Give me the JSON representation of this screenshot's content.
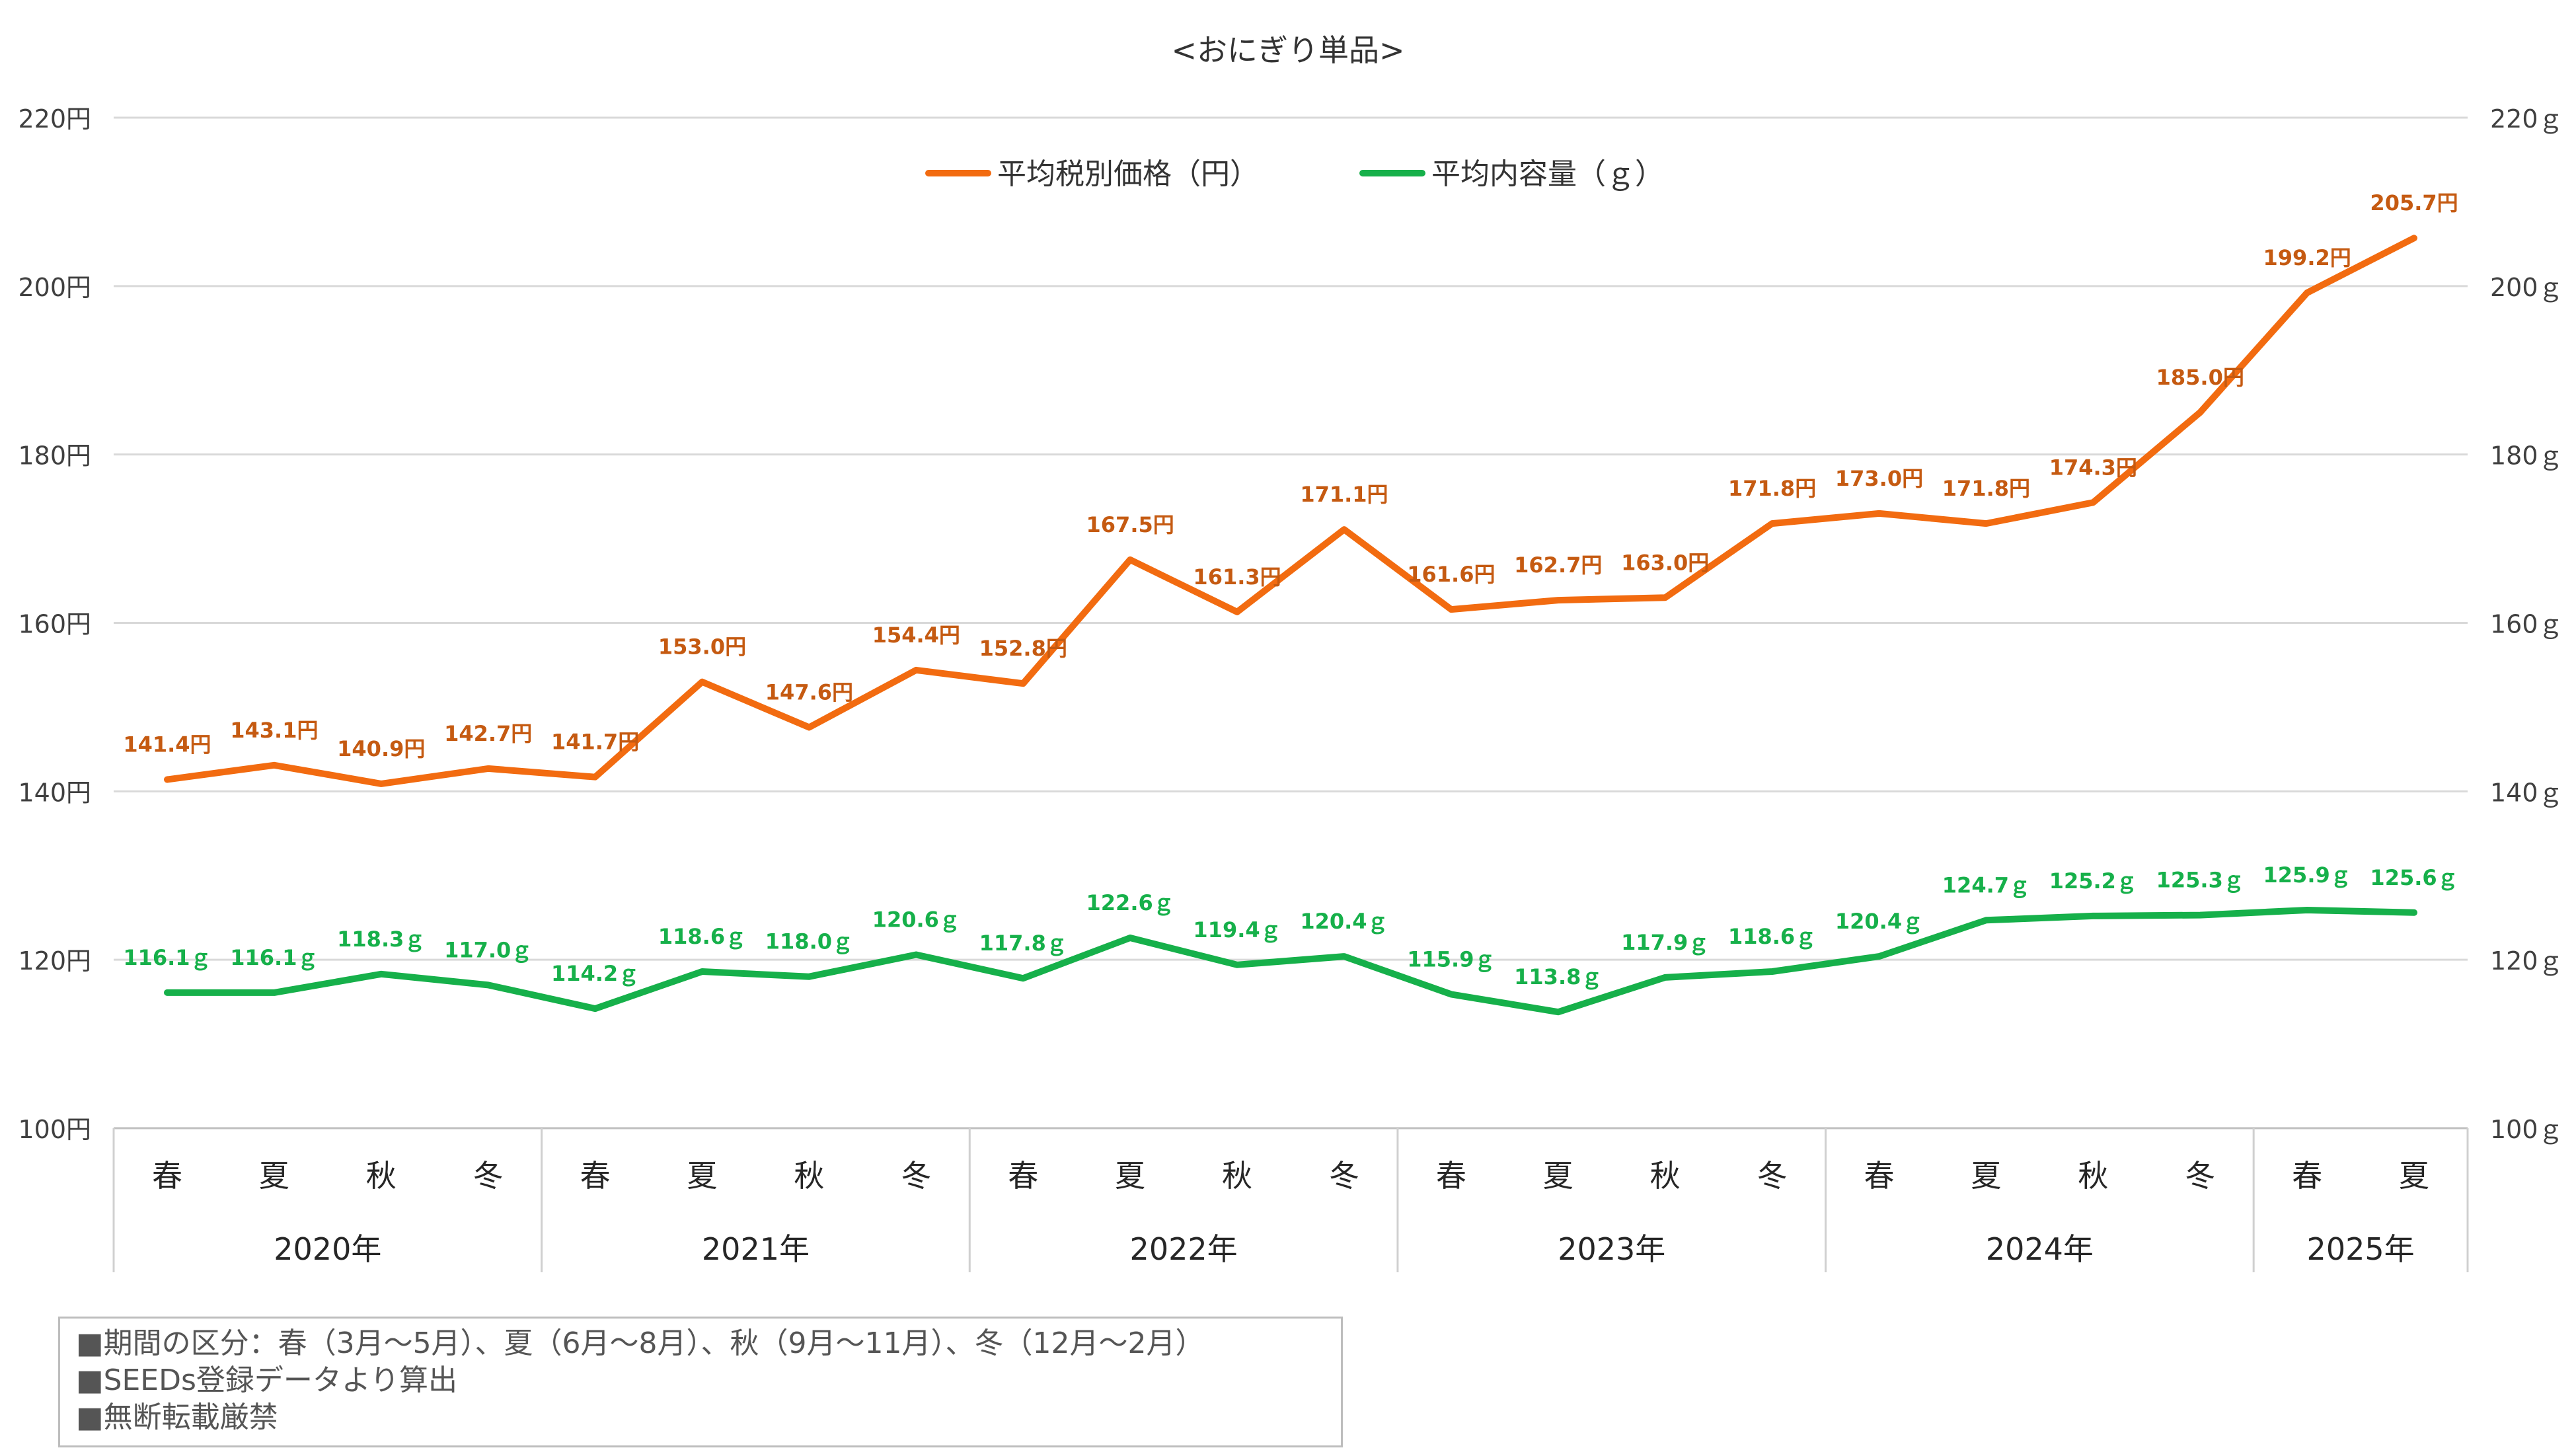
{
  "chart_data": {
    "type": "line",
    "title": "<おにぎり単品>",
    "categories": [
      "春",
      "夏",
      "秋",
      "冬",
      "春",
      "夏",
      "秋",
      "冬",
      "春",
      "夏",
      "秋",
      "冬",
      "春",
      "夏",
      "秋",
      "冬",
      "春",
      "夏",
      "秋",
      "冬",
      "春",
      "夏"
    ],
    "years": [
      {
        "label": "2020年",
        "span": 4
      },
      {
        "label": "2021年",
        "span": 4
      },
      {
        "label": "2022年",
        "span": 4
      },
      {
        "label": "2023年",
        "span": 4
      },
      {
        "label": "2024年",
        "span": 4
      },
      {
        "label": "2025年",
        "span": 2
      }
    ],
    "ylim": [
      100,
      220
    ],
    "y_ticks": [
      100,
      120,
      140,
      160,
      180,
      200,
      220
    ],
    "y_left_tick_labels": [
      "100円",
      "120円",
      "140円",
      "160円",
      "180円",
      "200円",
      "220円"
    ],
    "y_right_tick_labels": [
      "100ｇ",
      "120ｇ",
      "140ｇ",
      "160ｇ",
      "180ｇ",
      "200ｇ",
      "220ｇ"
    ],
    "grid": true,
    "legend_position": "top-center",
    "series": [
      {
        "name": "平均税別価格（円）",
        "color": "#f26b10",
        "label_color": "#c55a11",
        "values": [
          141.4,
          143.1,
          140.9,
          142.7,
          141.7,
          153.0,
          147.6,
          154.4,
          152.8,
          167.5,
          161.3,
          171.1,
          161.6,
          162.7,
          163.0,
          171.8,
          173.0,
          171.8,
          174.3,
          185.0,
          199.2,
          205.7
        ],
        "labels": [
          "141.4円",
          "143.1円",
          "140.9円",
          "142.7円",
          "141.7円",
          "153.0円",
          "147.6円",
          "154.4円",
          "152.8円",
          "167.5円",
          "161.3円",
          "171.1円",
          "161.6円",
          "162.7円",
          "163.0円",
          "171.8円",
          "173.0円",
          "171.8円",
          "174.3円",
          "185.0円",
          "199.2円",
          "205.7円"
        ]
      },
      {
        "name": "平均内容量（ｇ）",
        "color": "#16b04a",
        "label_color": "#16b04a",
        "values": [
          116.1,
          116.1,
          118.3,
          117.0,
          114.2,
          118.6,
          118.0,
          120.6,
          117.8,
          122.6,
          119.4,
          120.4,
          115.9,
          113.8,
          117.9,
          118.6,
          120.4,
          124.7,
          125.2,
          125.3,
          125.9,
          125.6
        ],
        "labels": [
          "116.1ｇ",
          "116.1ｇ",
          "118.3ｇ",
          "117.0ｇ",
          "114.2ｇ",
          "118.6ｇ",
          "118.0ｇ",
          "120.6ｇ",
          "117.8ｇ",
          "122.6ｇ",
          "119.4ｇ",
          "120.4ｇ",
          "115.9ｇ",
          "113.8ｇ",
          "117.9ｇ",
          "118.6ｇ",
          "120.4ｇ",
          "124.7ｇ",
          "125.2ｇ",
          "125.3ｇ",
          "125.9ｇ",
          "125.6ｇ"
        ]
      }
    ]
  },
  "notes": [
    "■期間の区分：春（3月～5月）、夏（6月～8月）、秋（9月～11月）、冬（12月～2月）",
    "■SEEDs登録データより算出",
    "■無断転載厳禁"
  ]
}
